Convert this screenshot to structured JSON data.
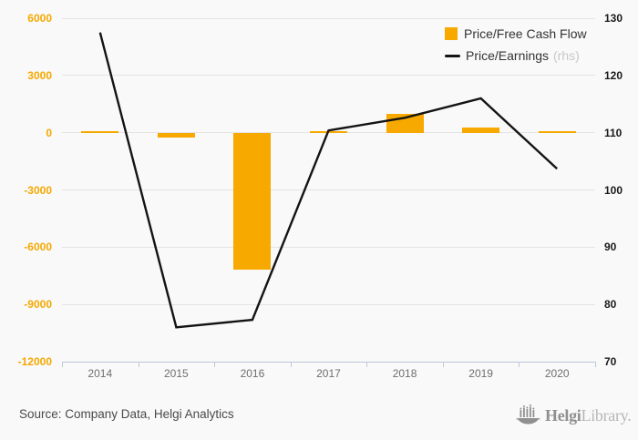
{
  "chart_data": {
    "type": "bar",
    "categories": [
      "2014",
      "2015",
      "2016",
      "2017",
      "2018",
      "2019",
      "2020"
    ],
    "series": [
      {
        "name": "Price/Free Cash Flow",
        "type": "bar",
        "axis": "left",
        "color": "#f8a900",
        "values": [
          100,
          -250,
          -7200,
          100,
          1000,
          250,
          50
        ]
      },
      {
        "name": "Price/Earnings",
        "rhs_label": "(rhs)",
        "type": "line",
        "axis": "right",
        "color": "#141414",
        "values": [
          127.5,
          76,
          77.3,
          110.4,
          112.6,
          116,
          103.7
        ]
      }
    ],
    "title": "",
    "xlabel": "",
    "ylabel_left": "",
    "ylabel_right": "",
    "left_axis": {
      "min": -12000,
      "max": 6000,
      "ticks": [
        6000,
        3000,
        0,
        -3000,
        -6000,
        -9000,
        -12000
      ]
    },
    "right_axis": {
      "min": 70,
      "max": 130,
      "ticks": [
        130,
        120,
        110,
        100,
        90,
        80,
        70
      ]
    },
    "grid": true,
    "legend_position": "top-right"
  },
  "footer": {
    "source": "Source: Company Data, Helgi Analytics",
    "logo": {
      "icon": "helgi-ship-icon",
      "brand_bold": "Helgi",
      "brand_light": "Library."
    }
  }
}
